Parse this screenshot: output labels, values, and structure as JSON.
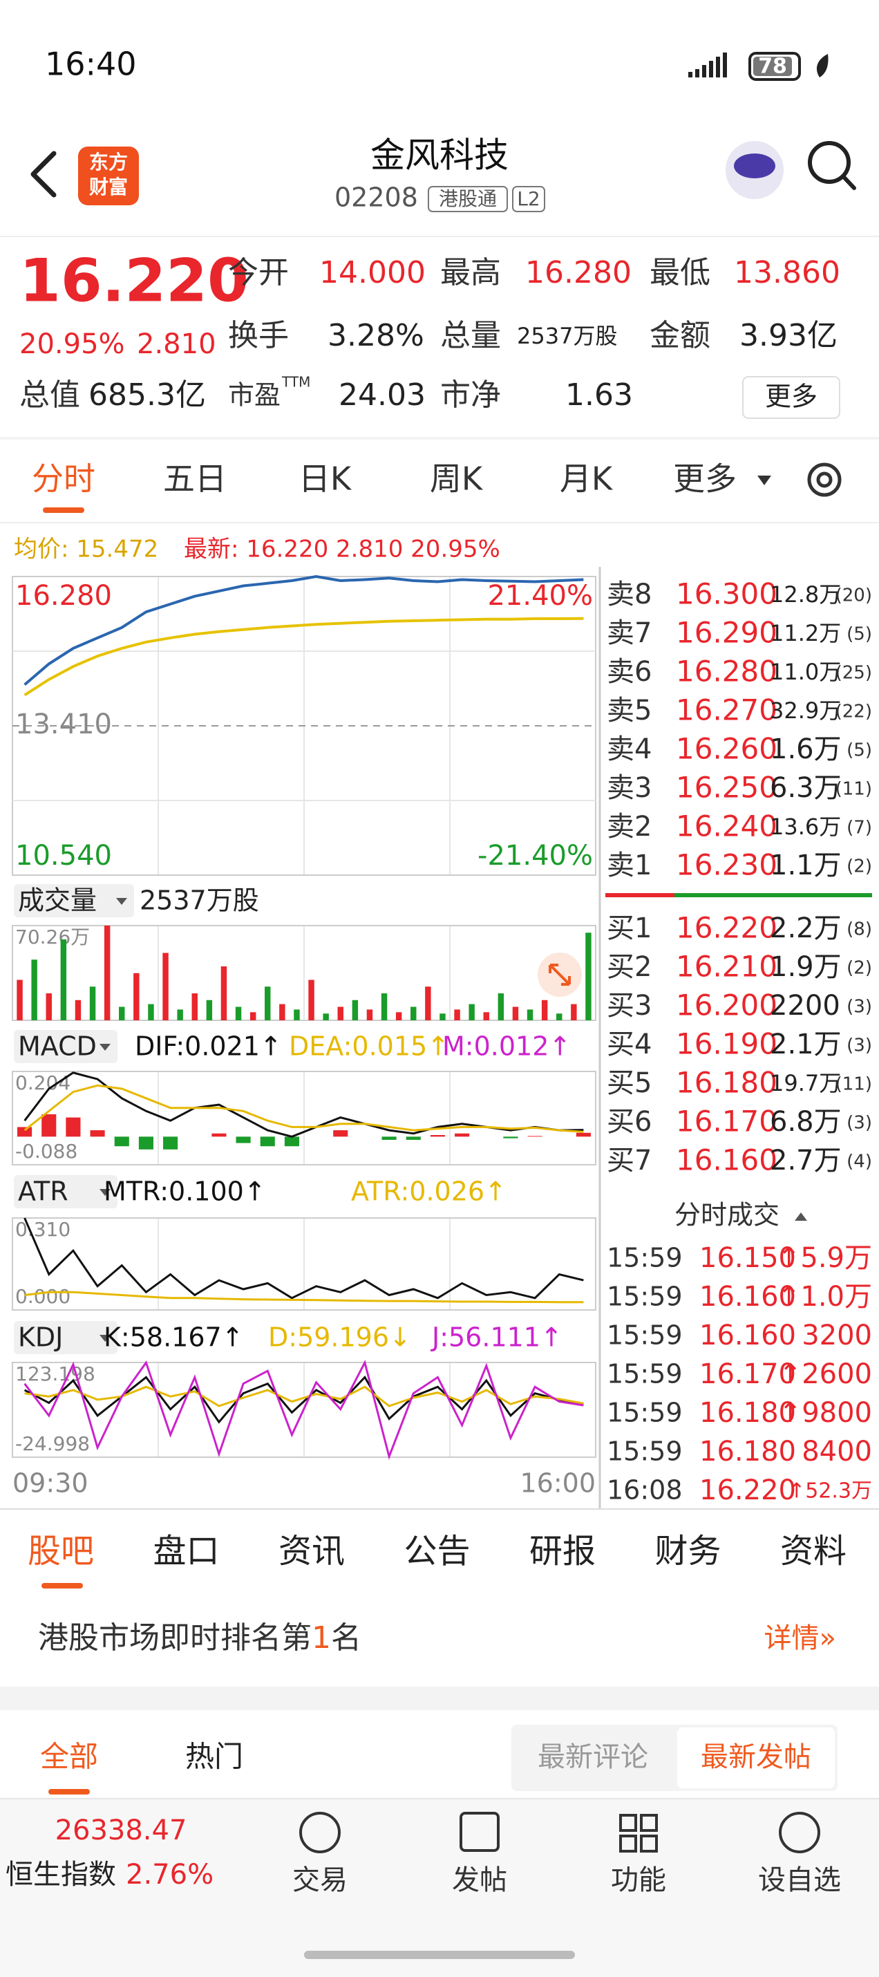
{
  "status": {
    "time": "16:40",
    "battery": "78"
  },
  "header": {
    "logo": [
      "东方",
      "财富"
    ],
    "title": "金风科技",
    "code": "02208",
    "badges": [
      "港股通",
      "L2"
    ]
  },
  "quote": {
    "price": "16.220",
    "change_pct": "20.95%",
    "change": "2.810",
    "fields": [
      {
        "label": "今开",
        "value": "14.000"
      },
      {
        "label": "最高",
        "value": "16.280"
      },
      {
        "label": "最低",
        "value": "13.860"
      },
      {
        "label": "换手",
        "value": "3.28%"
      },
      {
        "label": "总量",
        "value": "2537万股"
      },
      {
        "label": "金额",
        "value": "3.93亿"
      },
      {
        "label": "总值",
        "value": "685.3亿"
      },
      {
        "label": "市盈",
        "sup": "TTM",
        "value": "24.03"
      },
      {
        "label": "市净",
        "value": "1.63"
      }
    ],
    "more": "更多"
  },
  "chart_tabs": [
    "分时",
    "五日",
    "日K",
    "周K",
    "月K",
    "更多"
  ],
  "intraday": {
    "avg": "均价: 15.472",
    "latest": "最新: 16.220 2.810 20.95%"
  },
  "chart_data": [
    {
      "type": "line",
      "ylim": [
        10.54,
        16.28
      ],
      "yticks": [
        {
          "value": 16.28,
          "label": "16.280"
        },
        {
          "value": 13.41,
          "label": "13.410"
        },
        {
          "value": 10.54,
          "label": "10.540"
        }
      ],
      "y2lim": [
        -21.4,
        21.4
      ],
      "y2ticks": [
        {
          "value": 21.4,
          "label": "21.40%"
        },
        {
          "value": -21.4,
          "label": "-21.40%"
        }
      ],
      "xticks": [
        "09:30",
        "16:00"
      ],
      "series": [
        {
          "color": "#2a66b0",
          "values": [
            14.2,
            14.6,
            14.9,
            15.1,
            15.3,
            15.6,
            15.75,
            15.9,
            16.0,
            16.1,
            16.15,
            16.2,
            16.28,
            16.2,
            16.22,
            16.25,
            16.2,
            16.18,
            16.22,
            16.2,
            16.19,
            16.18,
            16.2,
            16.22
          ]
        },
        {
          "color": "#e6c200",
          "values": [
            14.0,
            14.3,
            14.55,
            14.75,
            14.9,
            15.02,
            15.1,
            15.17,
            15.22,
            15.26,
            15.3,
            15.33,
            15.36,
            15.38,
            15.4,
            15.42,
            15.43,
            15.44,
            15.45,
            15.46,
            15.46,
            15.47,
            15.47,
            15.472
          ]
        }
      ]
    },
    {
      "type": "bar",
      "title": "成交量",
      "subtitle": "2537万股",
      "ylim": [
        0,
        70.26
      ],
      "yticks": [
        {
          "value": 70.26,
          "label": "70.26万"
        }
      ],
      "colors": [
        "#e8262c",
        "#1a9c2a"
      ],
      "values": [
        30,
        45,
        20,
        60,
        15,
        25,
        70.26,
        10,
        35,
        12,
        50,
        8,
        20,
        15,
        40,
        10,
        6,
        25,
        12,
        8,
        30,
        5,
        10,
        15,
        8,
        20,
        6,
        10,
        25,
        5,
        8,
        12,
        6,
        20,
        10,
        8,
        15,
        5,
        12,
        65
      ]
    },
    {
      "type": "line",
      "title": "MACD",
      "legend": [
        {
          "label": "DIF:0.021↑",
          "color": "#111111"
        },
        {
          "label": "DEA:0.015↑",
          "color": "#e6b800"
        },
        {
          "label": "M:0.012↑",
          "color": "#cc22cc"
        }
      ],
      "ylim": [
        -0.088,
        0.204
      ],
      "yticks": [
        {
          "value": 0.204,
          "label": "0.204"
        },
        {
          "value": -0.088,
          "label": "-0.088"
        }
      ],
      "series": [
        {
          "color": "#111111",
          "values": [
            0.05,
            0.15,
            0.2,
            0.18,
            0.12,
            0.08,
            0.05,
            0.09,
            0.1,
            0.06,
            0.02,
            0,
            0.03,
            0.06,
            0.04,
            0.02,
            0.01,
            0.03,
            0.04,
            0.03,
            0.02,
            0.03,
            0.02,
            0.021
          ]
        },
        {
          "color": "#e6b800",
          "values": [
            0.02,
            0.08,
            0.14,
            0.16,
            0.15,
            0.12,
            0.09,
            0.09,
            0.09,
            0.08,
            0.05,
            0.03,
            0.03,
            0.04,
            0.04,
            0.03,
            0.02,
            0.025,
            0.03,
            0.03,
            0.025,
            0.028,
            0.02,
            0.015
          ]
        }
      ],
      "histogram": {
        "colors": [
          "#e8262c",
          "#1a9c2a"
        ],
        "values": [
          0.03,
          0.07,
          0.06,
          0.02,
          -0.03,
          -0.04,
          -0.04,
          0,
          0.01,
          -0.02,
          -0.03,
          -0.03,
          0,
          0.02,
          0,
          -0.01,
          -0.01,
          0.005,
          0.01,
          0,
          -0.005,
          0.002,
          0,
          0.012
        ]
      }
    },
    {
      "type": "line",
      "title": "ATR",
      "legend": [
        {
          "label": "MTR:0.100↑",
          "color": "#111111"
        },
        {
          "label": "ATR:0.026↑",
          "color": "#e6b800"
        }
      ],
      "ylim": [
        0,
        0.31
      ],
      "yticks": [
        {
          "value": 0.31,
          "label": "0.310"
        },
        {
          "value": 0,
          "label": "0.000"
        }
      ],
      "series": [
        {
          "color": "#111111",
          "values": [
            0.31,
            0.12,
            0.2,
            0.08,
            0.15,
            0.06,
            0.12,
            0.05,
            0.1,
            0.07,
            0.09,
            0.04,
            0.08,
            0.06,
            0.1,
            0.05,
            0.07,
            0.04,
            0.09,
            0.05,
            0.06,
            0.04,
            0.12,
            0.1
          ]
        },
        {
          "color": "#e6b800",
          "values": [
            0.05,
            0.06,
            0.06,
            0.055,
            0.05,
            0.045,
            0.04,
            0.04,
            0.038,
            0.036,
            0.035,
            0.034,
            0.033,
            0.032,
            0.031,
            0.03,
            0.03,
            0.029,
            0.028,
            0.028,
            0.027,
            0.027,
            0.026,
            0.026
          ]
        }
      ]
    },
    {
      "type": "line",
      "title": "KDJ",
      "legend": [
        {
          "label": "K:58.167↑",
          "color": "#111111"
        },
        {
          "label": "D:59.196↓",
          "color": "#e6b800"
        },
        {
          "label": "J:56.111↑",
          "color": "#cc22cc"
        }
      ],
      "ylim": [
        -24.998,
        123.198
      ],
      "yticks": [
        {
          "value": 123.198,
          "label": "123.198"
        },
        {
          "value": -24.998,
          "label": "-24.998"
        }
      ],
      "series": [
        {
          "color": "#111111",
          "values": [
            80,
            60,
            95,
            40,
            70,
            100,
            50,
            85,
            30,
            75,
            90,
            45,
            80,
            60,
            100,
            35,
            70,
            85,
            50,
            95,
            40,
            75,
            65,
            58.167
          ]
        },
        {
          "color": "#e6b800",
          "values": [
            75,
            70,
            80,
            65,
            70,
            85,
            70,
            78,
            55,
            68,
            80,
            62,
            74,
            66,
            85,
            55,
            68,
            76,
            62,
            80,
            58,
            70,
            66,
            59.196
          ]
        },
        {
          "color": "#cc22cc",
          "values": [
            90,
            40,
            120,
            -10,
            70,
            123,
            10,
            100,
            -20,
            90,
            110,
            10,
            92,
            50,
            123,
            -24,
            75,
            100,
            25,
            118,
            5,
            85,
            62,
            56.111
          ]
        }
      ]
    }
  ],
  "order_book": {
    "asks": [
      [
        "卖8",
        "16.300",
        "12.8万",
        "(20)"
      ],
      [
        "卖7",
        "16.290",
        "11.2万",
        "(5)"
      ],
      [
        "卖6",
        "16.280",
        "11.0万",
        "(25)"
      ],
      [
        "卖5",
        "16.270",
        "32.9万",
        "(22)"
      ],
      [
        "卖4",
        "16.260",
        "1.6万",
        "(5)"
      ],
      [
        "卖3",
        "16.250",
        "6.3万",
        "(11)"
      ],
      [
        "卖2",
        "16.240",
        "13.6万",
        "(7)"
      ],
      [
        "卖1",
        "16.230",
        "1.1万",
        "(2)"
      ]
    ],
    "bids": [
      [
        "买1",
        "16.220",
        "2.2万",
        "(8)"
      ],
      [
        "买2",
        "16.210",
        "1.9万",
        "(2)"
      ],
      [
        "买3",
        "16.200",
        "2200",
        "(3)"
      ],
      [
        "买4",
        "16.190",
        "2.1万",
        "(3)"
      ],
      [
        "买5",
        "16.180",
        "19.7万",
        "(11)"
      ],
      [
        "买6",
        "16.170",
        "6.8万",
        "(3)"
      ],
      [
        "买7",
        "16.160",
        "2.7万",
        "(4)"
      ]
    ]
  },
  "trades": {
    "title": "分时成交",
    "rows": [
      [
        "15:59",
        "16.150",
        "↑5.9万"
      ],
      [
        "15:59",
        "16.160",
        "↑1.0万"
      ],
      [
        "15:59",
        "16.160",
        "3200"
      ],
      [
        "15:59",
        "16.170",
        "↑2600"
      ],
      [
        "15:59",
        "16.180",
        "↑9800"
      ],
      [
        "15:59",
        "16.180",
        "8400"
      ],
      [
        "16:08",
        "16.220",
        "↑52.3万"
      ]
    ]
  },
  "section_tabs": [
    "股吧",
    "盘口",
    "资讯",
    "公告",
    "研报",
    "财务",
    "资料"
  ],
  "rank": {
    "text": [
      "港股市场即时排名第",
      "1",
      "名"
    ],
    "link": "详情»"
  },
  "post_tabs": [
    "全部",
    "热门"
  ],
  "post_sort": [
    "最新评论",
    "最新发帖"
  ],
  "nav": {
    "index_value": "26338.47",
    "index_name": "恒生指数",
    "index_change": "2.76%",
    "items": [
      "交易",
      "发帖",
      "功能",
      "设自选"
    ]
  }
}
